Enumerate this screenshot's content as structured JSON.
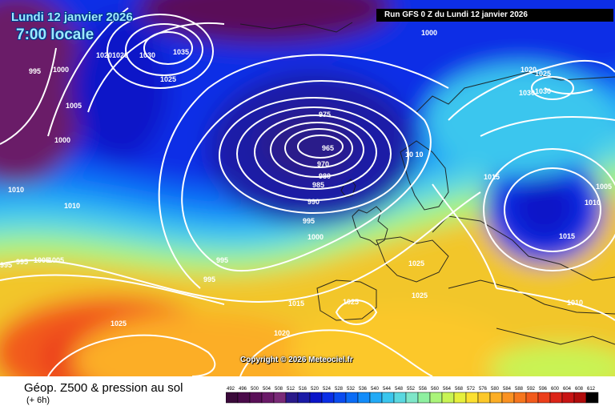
{
  "header": {
    "date_line": "Lundi 12 janvier 2026",
    "time_line": "7:00 locale",
    "run_info": "Run GFS 0 Z du Lundi 12 janvier 2026"
  },
  "copyright": "Copyright © 2026 Meteociel.fr",
  "legend": {
    "title": "Géop. Z500 & pression au sol",
    "subtitle": "(+ 6h)",
    "scale_values": [
      "492",
      "496",
      "500",
      "504",
      "508",
      "512",
      "516",
      "520",
      "524",
      "528",
      "532",
      "536",
      "540",
      "544",
      "548",
      "552",
      "556",
      "560",
      "564",
      "568",
      "572",
      "576",
      "580",
      "584",
      "588",
      "592",
      "596",
      "600",
      "604",
      "608",
      "612"
    ],
    "scale_colors": [
      "#3a0a3a",
      "#4a0a4a",
      "#5a1058",
      "#6a1a68",
      "#7a2a78",
      "#2a1a8a",
      "#1a1aa6",
      "#0a14c8",
      "#0a2ee6",
      "#0a4cf0",
      "#0a6cf6",
      "#128cfa",
      "#22aaf6",
      "#3ac6ee",
      "#5ad8e0",
      "#7ee6c8",
      "#8ef0a0",
      "#aaf47a",
      "#c8f454",
      "#e6f03c",
      "#fce030",
      "#fcc82a",
      "#fcae26",
      "#fa9222",
      "#f6761e",
      "#f25a1c",
      "#ec3e1a",
      "#dc2418",
      "#c81414",
      "#b00c0c",
      "#000000"
    ]
  },
  "isobar_labels": [
    "1000",
    "995",
    "1000",
    "1005",
    "1000",
    "1010",
    "1010",
    "1015",
    "1020",
    "1030",
    "1035",
    "1025",
    "975",
    "965",
    "970",
    "980",
    "985",
    "990",
    "995",
    "1000",
    "995",
    "995",
    "1005",
    "1005",
    "995",
    "1000",
    "1020",
    "1025",
    "1030",
    "1030",
    "1015",
    "1005",
    "1010",
    "1015",
    "1010",
    "1025",
    "1025",
    "1025",
    "1015",
    "1020",
    "1025",
    "10 10"
  ]
}
